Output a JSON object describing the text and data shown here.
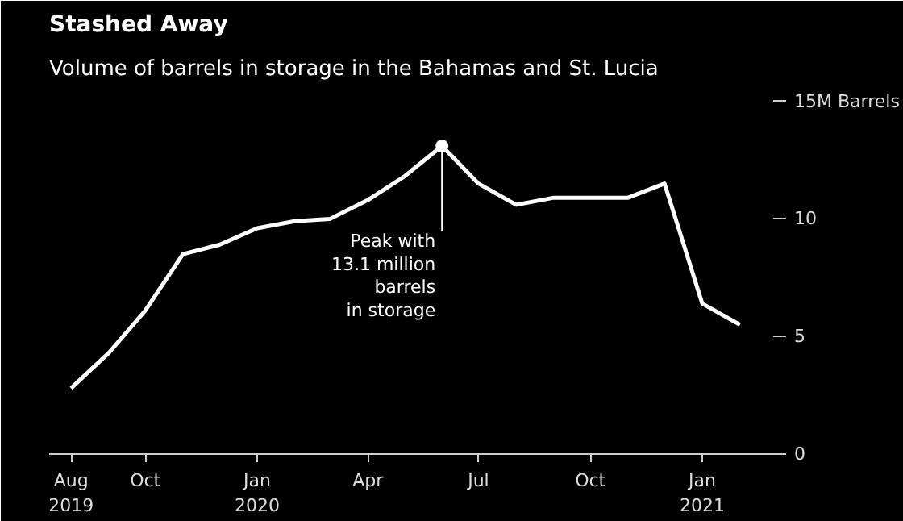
{
  "chart_data": {
    "type": "line",
    "title": "Stashed Away",
    "subtitle": "Volume of barrels in storage in the Bahamas and St. Lucia",
    "x": [
      "2019-08",
      "2019-09",
      "2019-10",
      "2019-11",
      "2019-12",
      "2020-01",
      "2020-02",
      "2020-03",
      "2020-04",
      "2020-05",
      "2020-06",
      "2020-07",
      "2020-08",
      "2020-09",
      "2020-10",
      "2020-11",
      "2020-12",
      "2021-01",
      "2021-02"
    ],
    "series": [
      {
        "color": "#ffffff",
        "values": [
          2.8,
          4.3,
          6.1,
          8.5,
          8.9,
          9.6,
          9.9,
          10.0,
          10.8,
          11.8,
          13.1,
          11.5,
          10.6,
          10.9,
          10.9,
          10.9,
          11.5,
          6.4,
          5.5
        ]
      }
    ],
    "xlim": [
      "2019-07-14",
      "2021-03-03"
    ],
    "xticks": [
      {
        "value": "2019-08",
        "label": "Aug\n2019"
      },
      {
        "value": "2019-10",
        "label": "Oct"
      },
      {
        "value": "2020-01",
        "label": "Jan\n2020"
      },
      {
        "value": "2020-04",
        "label": "Apr"
      },
      {
        "value": "2020-07",
        "label": "Jul"
      },
      {
        "value": "2020-10",
        "label": "Oct"
      },
      {
        "value": "2021-01",
        "label": "Jan\n2021"
      }
    ],
    "ylim": [
      0,
      15.5
    ],
    "yticks": [
      0,
      5,
      10,
      {
        "value": 15,
        "label": "15M Barrels"
      }
    ],
    "annotations": [
      {
        "text": "Peak with\n13.1 million\nbarrels\nin storage",
        "x": "2020-06",
        "y": 13.1
      }
    ],
    "grid": false,
    "marker": "none",
    "line_style": "solid"
  }
}
